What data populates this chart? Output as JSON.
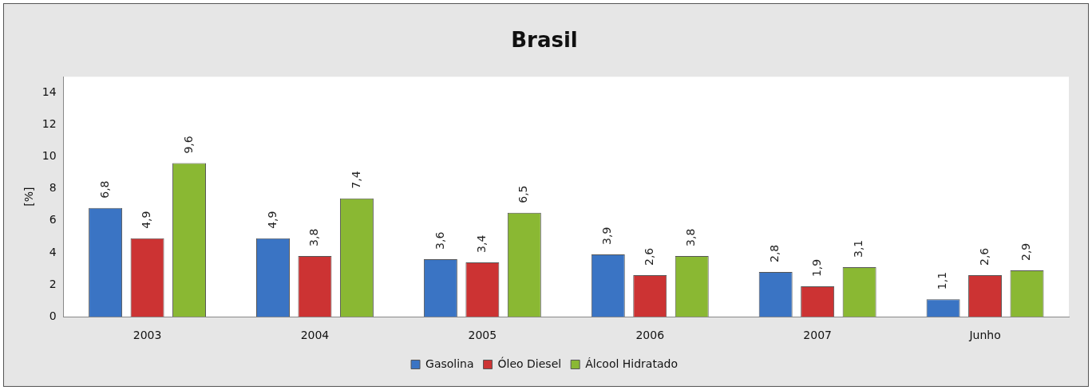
{
  "chart_data": {
    "type": "bar",
    "title": "Brasil",
    "ylabel": "[%]",
    "categories": [
      "2003",
      "2004",
      "2005",
      "2006",
      "2007",
      "Junho"
    ],
    "series": [
      {
        "name": "Gasolina",
        "color": "#3a74c4",
        "values": [
          6.8,
          4.9,
          3.6,
          3.9,
          2.8,
          1.1
        ],
        "value_labels": [
          "6,8",
          "4,9",
          "3,6",
          "3,9",
          "2,8",
          "1,1"
        ]
      },
      {
        "name": "Óleo Diesel",
        "color": "#cc3333",
        "values": [
          4.9,
          3.8,
          3.4,
          2.6,
          1.9,
          2.6
        ],
        "value_labels": [
          "4,9",
          "3,8",
          "3,4",
          "2,6",
          "1,9",
          "2,6"
        ]
      },
      {
        "name": "Álcool Hidratado",
        "color": "#8ab833",
        "values": [
          9.6,
          7.4,
          6.5,
          3.8,
          3.1,
          2.9
        ],
        "value_labels": [
          "9,6",
          "7,4",
          "6,5",
          "3,8",
          "3,1",
          "2,9"
        ]
      }
    ],
    "ylim": [
      0,
      15
    ],
    "yticks": [
      0,
      2,
      4,
      6,
      8,
      10,
      12,
      14
    ],
    "grid": false,
    "legend": "bottom"
  }
}
